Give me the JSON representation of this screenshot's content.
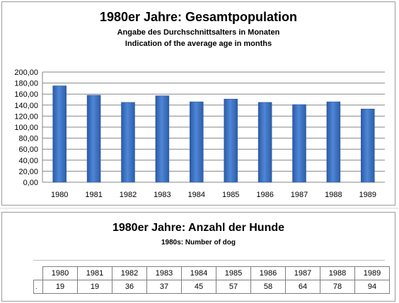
{
  "chart_panel": {
    "title": "1980er Jahre: Gesamtpopulation",
    "subtitle_de": "Angabe des Durchschnittsalters in Monaten",
    "subtitle_en": "Indication of the average age in months"
  },
  "chart_data": {
    "type": "bar",
    "title": "1980er Jahre: Gesamtpopulation",
    "categories": [
      "1980",
      "1981",
      "1982",
      "1983",
      "1984",
      "1985",
      "1986",
      "1987",
      "1988",
      "1989"
    ],
    "values": [
      175,
      158,
      145,
      157,
      146,
      151,
      145,
      141,
      146,
      133
    ],
    "ylim": [
      0,
      200
    ],
    "yticks": [
      "0,00",
      "20,00",
      "40,00",
      "60,00",
      "80,00",
      "100,00",
      "120,00",
      "140,00",
      "160,00",
      "180,00",
      "200,00"
    ],
    "grid": true,
    "bar_color": "#3d73c4"
  },
  "table_panel": {
    "title": "1980er Jahre: Anzahl der Hunde",
    "subtitle": "1980s: Number of dog",
    "row_label": ".",
    "years": [
      "1980",
      "1981",
      "1982",
      "1983",
      "1984",
      "1985",
      "1986",
      "1987",
      "1988",
      "1989"
    ],
    "counts": [
      "19",
      "19",
      "36",
      "37",
      "45",
      "57",
      "58",
      "64",
      "78",
      "94"
    ]
  }
}
